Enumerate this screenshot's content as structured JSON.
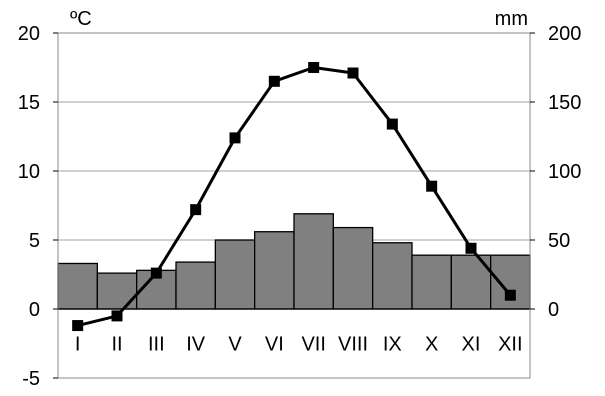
{
  "chart_data": {
    "type": "climograph",
    "categories": [
      "I",
      "II",
      "III",
      "IV",
      "V",
      "VI",
      "VII",
      "VIII",
      "IX",
      "X",
      "XI",
      "XII"
    ],
    "series": [
      {
        "type": "line",
        "axis": "left",
        "unit": "ºC",
        "values": [
          -1.2,
          -0.5,
          2.6,
          7.2,
          12.4,
          16.5,
          17.5,
          17.1,
          13.4,
          8.9,
          4.4,
          1.0
        ],
        "color": "#000000",
        "marker": "square"
      },
      {
        "type": "bar",
        "axis": "right",
        "unit": "mm",
        "values": [
          33,
          26,
          28,
          34,
          50,
          56,
          69,
          59,
          48,
          39,
          39,
          39
        ],
        "color": "#808080"
      }
    ],
    "y_left": {
      "unit_label": "ºC",
      "range": [
        -5,
        20
      ],
      "ticks": [
        "20",
        "15",
        "10",
        "5",
        "0",
        "-5"
      ]
    },
    "y_right": {
      "unit_label": "mm",
      "range": [
        -50,
        200
      ],
      "ticks": [
        "200",
        "150",
        "100",
        "50",
        "0"
      ]
    },
    "grid": true
  }
}
